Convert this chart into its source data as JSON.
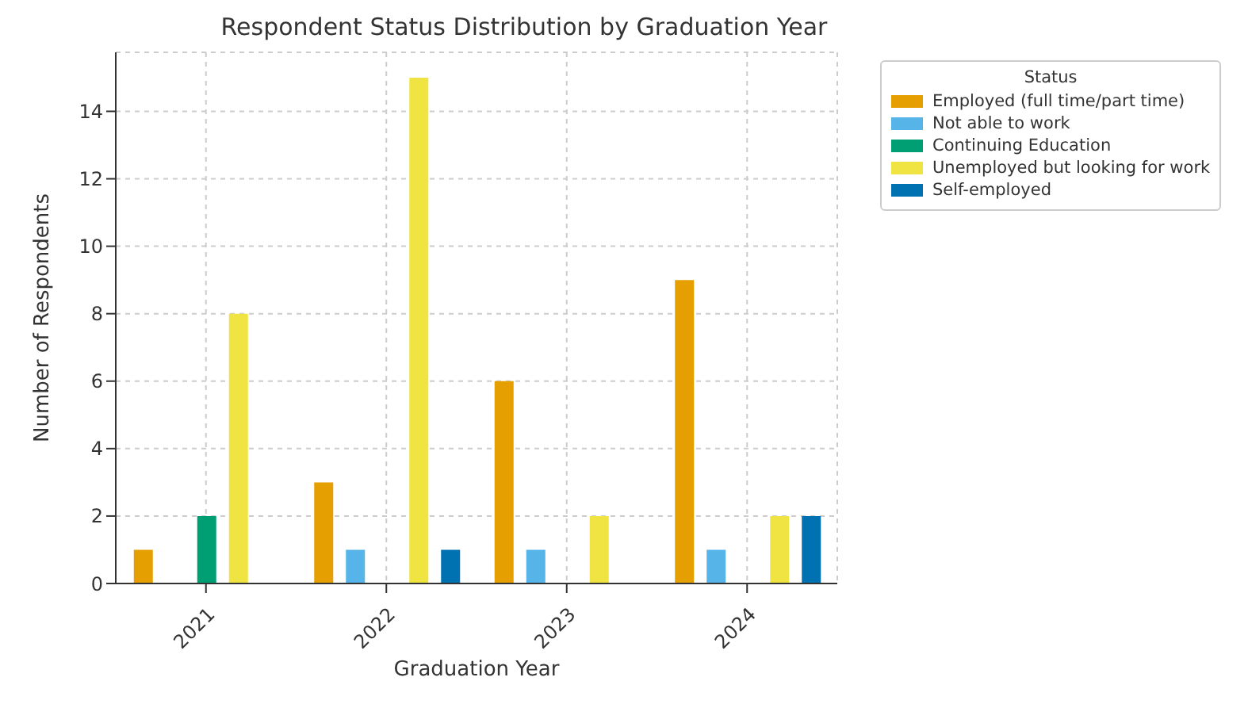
{
  "chart_data": {
    "type": "bar",
    "title": "Respondent Status Distribution by Graduation Year",
    "xlabel": "Graduation Year",
    "ylabel": "Number of Respondents",
    "legend_title": "Status",
    "categories": [
      "2021",
      "2022",
      "2023",
      "2024"
    ],
    "series": [
      {
        "name": "Employed (full time/part time)",
        "color": "#e69f00",
        "values": [
          1,
          3,
          6,
          9
        ]
      },
      {
        "name": "Not able to work",
        "color": "#56b4e9",
        "values": [
          0,
          1,
          1,
          1
        ]
      },
      {
        "name": "Continuing Education",
        "color": "#009e73",
        "values": [
          2,
          0,
          0,
          0
        ]
      },
      {
        "name": "Unemployed but looking for work",
        "color": "#f0e442",
        "values": [
          8,
          15,
          2,
          2
        ]
      },
      {
        "name": "Self-employed",
        "color": "#0072b2",
        "values": [
          0,
          1,
          0,
          2
        ]
      }
    ],
    "ylim": [
      0,
      15.75
    ],
    "yticks": [
      0,
      2,
      4,
      6,
      8,
      10,
      12,
      14
    ],
    "grid": true,
    "legend": "right"
  }
}
